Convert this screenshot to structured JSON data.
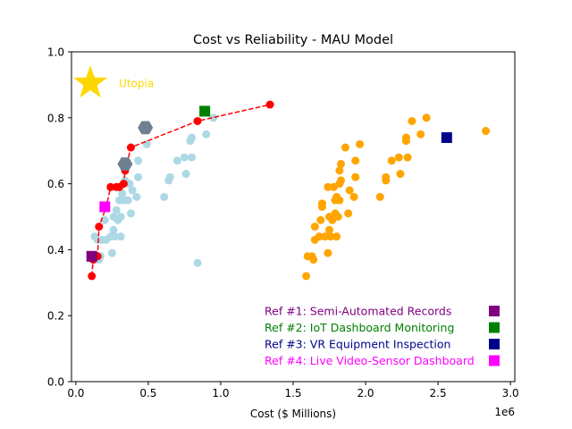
{
  "chart_data": {
    "type": "scatter",
    "title": "Cost vs Reliability - MAU Model",
    "xlabel": "Cost ($ Millions)",
    "ylabel": "",
    "x_offset_text": "1e6",
    "xlim": [
      -30000,
      3030000
    ],
    "ylim": [
      0,
      1.0
    ],
    "xticks": [
      0,
      500000,
      1000000,
      1500000,
      2000000,
      2500000,
      3000000
    ],
    "xtick_labels": [
      "0.0",
      "0.5",
      "1.0",
      "1.5",
      "2.0",
      "2.5",
      "3.0"
    ],
    "yticks": [
      0,
      0.2,
      0.4,
      0.6,
      0.8,
      1.0
    ],
    "ytick_labels": [
      "0.0",
      "0.2",
      "0.4",
      "0.6",
      "0.8",
      "1.0"
    ],
    "grid": false,
    "utopia": {
      "label": "Utopia",
      "x": 100000,
      "y": 0.905,
      "color": "#ffd700"
    },
    "series": [
      {
        "color": "#add8e6",
        "marker": "circle",
        "points": [
          [
            130000,
            0.44
          ],
          [
            150000,
            0.43
          ],
          [
            160000,
            0.37
          ],
          [
            170000,
            0.38
          ],
          [
            180000,
            0.43
          ],
          [
            200000,
            0.49
          ],
          [
            210000,
            0.43
          ],
          [
            240000,
            0.44
          ],
          [
            250000,
            0.39
          ],
          [
            260000,
            0.46
          ],
          [
            260000,
            0.5
          ],
          [
            270000,
            0.44
          ],
          [
            280000,
            0.52
          ],
          [
            290000,
            0.49
          ],
          [
            300000,
            0.55
          ],
          [
            300000,
            0.59
          ],
          [
            310000,
            0.44
          ],
          [
            310000,
            0.5
          ],
          [
            320000,
            0.57
          ],
          [
            330000,
            0.55
          ],
          [
            340000,
            0.61
          ],
          [
            360000,
            0.55
          ],
          [
            370000,
            0.6
          ],
          [
            380000,
            0.51
          ],
          [
            390000,
            0.58
          ],
          [
            420000,
            0.56
          ],
          [
            430000,
            0.62
          ],
          [
            430000,
            0.67
          ],
          [
            490000,
            0.72
          ],
          [
            610000,
            0.56
          ],
          [
            640000,
            0.61
          ],
          [
            650000,
            0.62
          ],
          [
            700000,
            0.67
          ],
          [
            750000,
            0.68
          ],
          [
            760000,
            0.63
          ],
          [
            790000,
            0.73
          ],
          [
            800000,
            0.74
          ],
          [
            800000,
            0.68
          ],
          [
            840000,
            0.36
          ],
          [
            900000,
            0.75
          ],
          [
            950000,
            0.8
          ]
        ]
      },
      {
        "color": "#ffa500",
        "marker": "circle",
        "points": [
          [
            1590000,
            0.32
          ],
          [
            1600000,
            0.38
          ],
          [
            1630000,
            0.38
          ],
          [
            1640000,
            0.37
          ],
          [
            1650000,
            0.47
          ],
          [
            1650000,
            0.43
          ],
          [
            1680000,
            0.44
          ],
          [
            1690000,
            0.49
          ],
          [
            1700000,
            0.53
          ],
          [
            1700000,
            0.54
          ],
          [
            1720000,
            0.44
          ],
          [
            1740000,
            0.59
          ],
          [
            1740000,
            0.39
          ],
          [
            1750000,
            0.5
          ],
          [
            1750000,
            0.46
          ],
          [
            1760000,
            0.44
          ],
          [
            1770000,
            0.49
          ],
          [
            1780000,
            0.59
          ],
          [
            1790000,
            0.55
          ],
          [
            1790000,
            0.51
          ],
          [
            1800000,
            0.56
          ],
          [
            1800000,
            0.44
          ],
          [
            1810000,
            0.5
          ],
          [
            1820000,
            0.6
          ],
          [
            1820000,
            0.55
          ],
          [
            1820000,
            0.64
          ],
          [
            1830000,
            0.61
          ],
          [
            1830000,
            0.66
          ],
          [
            1860000,
            0.71
          ],
          [
            1880000,
            0.51
          ],
          [
            1890000,
            0.58
          ],
          [
            1920000,
            0.56
          ],
          [
            1930000,
            0.62
          ],
          [
            1930000,
            0.67
          ],
          [
            1960000,
            0.72
          ],
          [
            2100000,
            0.56
          ],
          [
            2140000,
            0.61
          ],
          [
            2140000,
            0.62
          ],
          [
            2180000,
            0.67
          ],
          [
            2230000,
            0.68
          ],
          [
            2240000,
            0.63
          ],
          [
            2280000,
            0.73
          ],
          [
            2280000,
            0.74
          ],
          [
            2290000,
            0.68
          ],
          [
            2320000,
            0.79
          ],
          [
            2380000,
            0.75
          ],
          [
            2420000,
            0.8
          ],
          [
            2830000,
            0.76
          ]
        ]
      }
    ],
    "pareto_front": {
      "color": "#ff0000",
      "line_style": "dashed",
      "points": [
        [
          110000,
          0.32
        ],
        [
          120000,
          0.37
        ],
        [
          150000,
          0.38
        ],
        [
          160000,
          0.47
        ],
        [
          210000,
          0.53
        ],
        [
          240000,
          0.59
        ],
        [
          280000,
          0.59
        ],
        [
          300000,
          0.59
        ],
        [
          330000,
          0.6
        ],
        [
          340000,
          0.64
        ],
        [
          380000,
          0.71
        ],
        [
          840000,
          0.79
        ],
        [
          1340000,
          0.84
        ]
      ]
    },
    "highlight_hexagons": {
      "color": "#708090",
      "points": [
        [
          340000,
          0.66
        ],
        [
          480000,
          0.77
        ]
      ]
    },
    "references": [
      {
        "label": "Ref #1: Semi-Automated Records",
        "color": "#800080",
        "x": 110000,
        "y": 0.38
      },
      {
        "label": "Ref #2: IoT Dashboard Monitoring",
        "color": "#008000",
        "x": 890000,
        "y": 0.82
      },
      {
        "label": "Ref #3: VR Equipment Inspection",
        "color": "#00008b",
        "x": 2560000,
        "y": 0.74
      },
      {
        "label": "Ref #4: Live Video-Sensor Dashboard",
        "color": "#ff00ff",
        "x": 200000,
        "y": 0.53
      }
    ],
    "legend_placement": "lower-right"
  }
}
